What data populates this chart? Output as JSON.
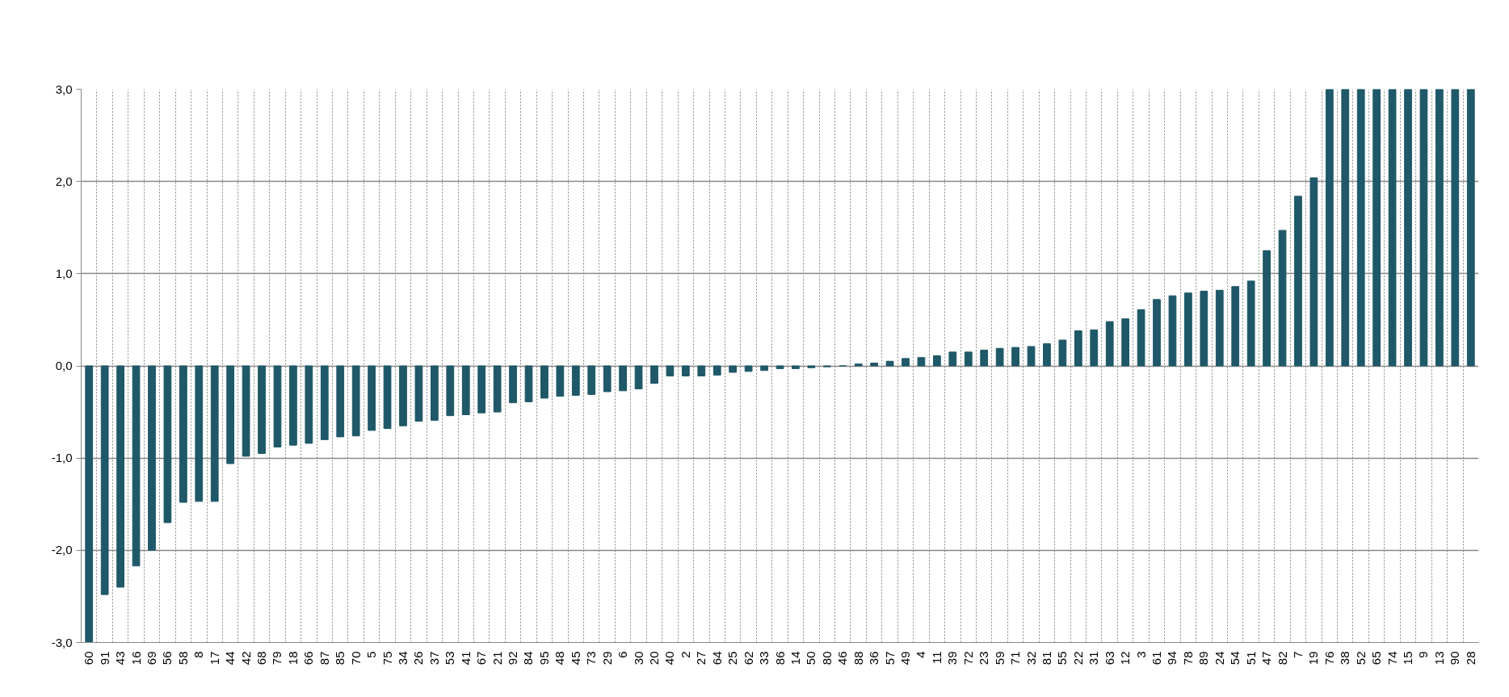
{
  "chart_data": {
    "type": "bar",
    "categories": [
      "60",
      "91",
      "43",
      "16",
      "69",
      "56",
      "58",
      "8",
      "17",
      "44",
      "42",
      "68",
      "79",
      "18",
      "66",
      "87",
      "85",
      "70",
      "5",
      "75",
      "34",
      "26",
      "37",
      "53",
      "41",
      "67",
      "21",
      "92",
      "84",
      "95",
      "48",
      "45",
      "73",
      "29",
      "6",
      "30",
      "20",
      "40",
      "2",
      "27",
      "64",
      "25",
      "62",
      "33",
      "86",
      "14",
      "50",
      "80",
      "46",
      "88",
      "36",
      "57",
      "49",
      "4",
      "11",
      "39",
      "72",
      "23",
      "59",
      "71",
      "32",
      "81",
      "55",
      "22",
      "31",
      "63",
      "12",
      "3",
      "61",
      "94",
      "78",
      "89",
      "24",
      "54",
      "51",
      "47",
      "82",
      "7",
      "19",
      "76",
      "38",
      "52",
      "65",
      "74",
      "15",
      "9",
      "13",
      "90",
      "28"
    ],
    "values": [
      -3.0,
      -2.48,
      -2.4,
      -2.17,
      -2.0,
      -1.7,
      -1.48,
      -1.47,
      -1.47,
      -1.06,
      -0.98,
      -0.95,
      -0.88,
      -0.86,
      -0.84,
      -0.8,
      -0.77,
      -0.76,
      -0.7,
      -0.68,
      -0.65,
      -0.6,
      -0.59,
      -0.54,
      -0.53,
      -0.51,
      -0.5,
      -0.4,
      -0.39,
      -0.35,
      -0.33,
      -0.32,
      -0.31,
      -0.28,
      -0.27,
      -0.25,
      -0.19,
      -0.11,
      -0.11,
      -0.11,
      -0.1,
      -0.07,
      -0.06,
      -0.05,
      -0.03,
      -0.03,
      -0.02,
      -0.01,
      0.0,
      0.02,
      0.03,
      0.05,
      0.08,
      0.09,
      0.11,
      0.15,
      0.15,
      0.17,
      0.19,
      0.2,
      0.21,
      0.24,
      0.28,
      0.38,
      0.39,
      0.48,
      0.51,
      0.61,
      0.72,
      0.76,
      0.79,
      0.81,
      0.82,
      0.86,
      0.92,
      1.25,
      1.47,
      1.84,
      2.04,
      3.0,
      3.0,
      3.0,
      3.0,
      3.0,
      3.0,
      3.0,
      3.0,
      3.0,
      3.0
    ],
    "color": "#1f5868",
    "ylim": [
      -3,
      3
    ],
    "yticks": [
      {
        "value": -3,
        "label": "-3,0"
      },
      {
        "value": -2,
        "label": "-2,0"
      },
      {
        "value": -1,
        "label": "-1,0"
      },
      {
        "value": 0,
        "label": "0,0"
      },
      {
        "value": 1,
        "label": "1,0"
      },
      {
        "value": 2,
        "label": "2,0"
      },
      {
        "value": 3,
        "label": "3,0"
      }
    ],
    "grid": true
  }
}
